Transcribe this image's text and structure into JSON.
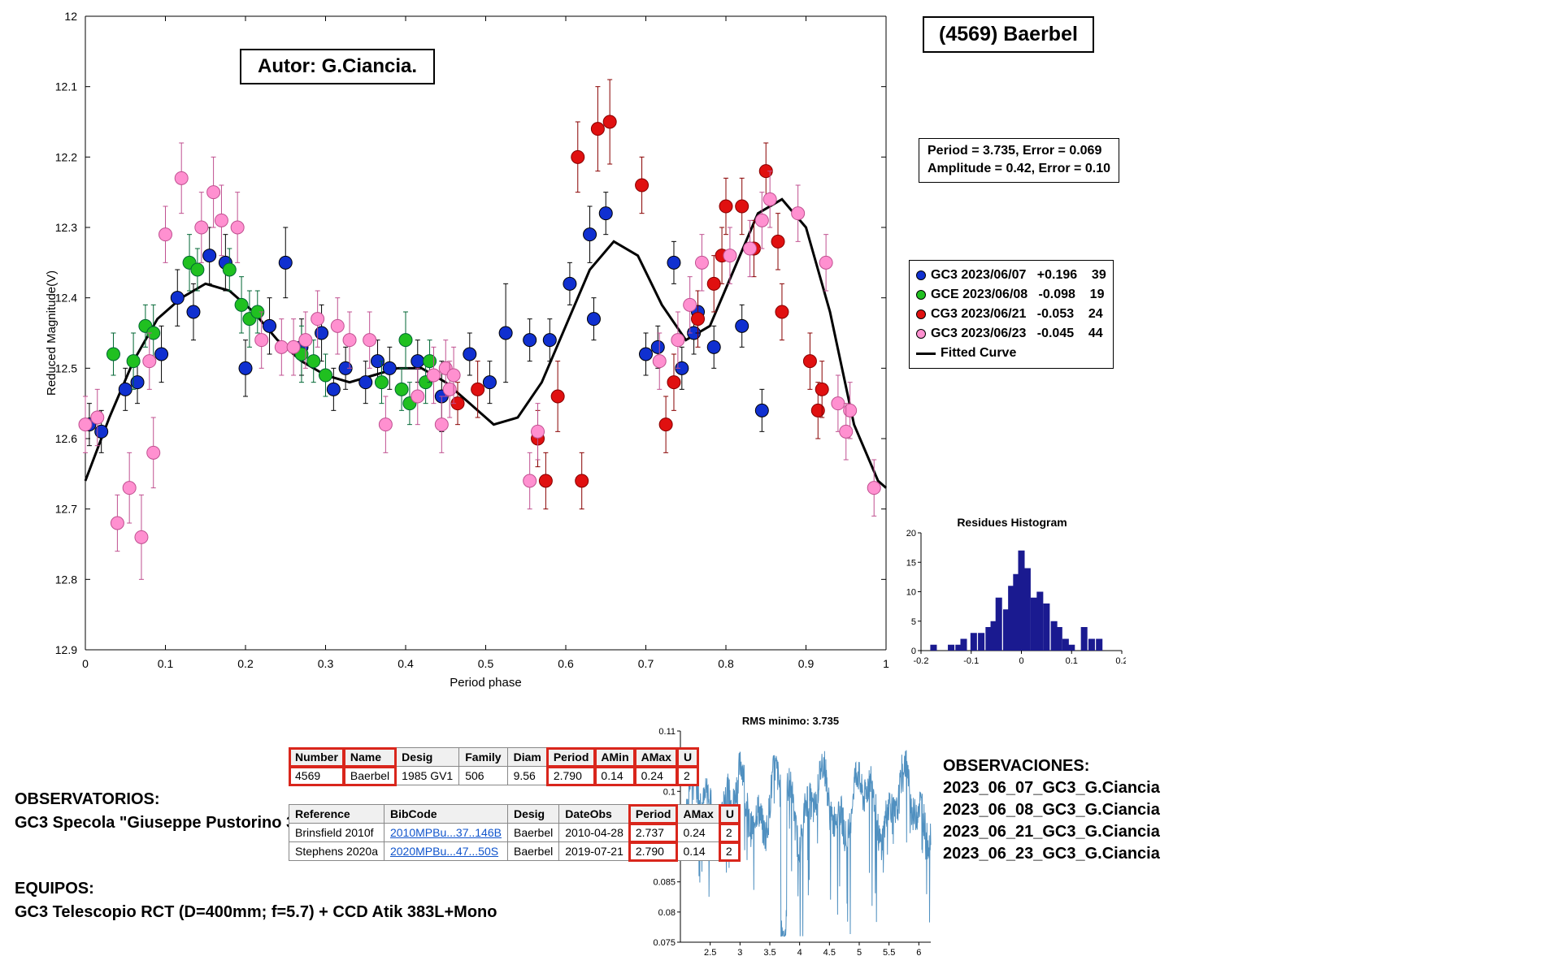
{
  "asteroid_title": "(4569) Baerbel",
  "autor_label": "Autor: G.Ciancia.",
  "stats": {
    "line1": "Period =  3.735, Error = 0.069",
    "line2": "Amplitude = 0.42, Error = 0.10"
  },
  "legend": {
    "items": [
      {
        "marker": "dot",
        "color": "#1030d0",
        "edge": "#000",
        "label": "GC3 2023/06/07   +0.196    39"
      },
      {
        "marker": "dot",
        "color": "#20c020",
        "edge": "#000",
        "label": "GCE 2023/06/08   -0.098    19"
      },
      {
        "marker": "dot",
        "color": "#e01010",
        "edge": "#000",
        "label": "CG3 2023/06/21   -0.053    24"
      },
      {
        "marker": "dot",
        "color": "#ff90d0",
        "edge": "#000",
        "label": "GC3 2023/06/23   -0.045    44"
      },
      {
        "marker": "line",
        "color": "#000000",
        "label": "Fitted Curve"
      }
    ]
  },
  "main_chart": {
    "type": "scatter_with_curve",
    "xlabel": "Period phase",
    "ylabel": "Reduced Magnitude(V)",
    "xlim": [
      0,
      1
    ],
    "ylim": [
      12.9,
      12.0
    ],
    "xticks": [
      0,
      0.1,
      0.2,
      0.3,
      0.4,
      0.5,
      0.6,
      0.7,
      0.8,
      0.9,
      1
    ],
    "yticks": [
      12,
      12.1,
      12.2,
      12.3,
      12.4,
      12.5,
      12.6,
      12.7,
      12.8,
      12.9
    ],
    "background": "#ffffff",
    "tick_font": 14,
    "label_font": 15,
    "marker_radius": 8,
    "errorbar_halfwidth": 3,
    "fitted_curve": {
      "color": "#000000",
      "width": 3.0,
      "points": [
        [
          0.0,
          12.66
        ],
        [
          0.03,
          12.57
        ],
        [
          0.06,
          12.49
        ],
        [
          0.09,
          12.43
        ],
        [
          0.12,
          12.4
        ],
        [
          0.15,
          12.38
        ],
        [
          0.18,
          12.39
        ],
        [
          0.21,
          12.42
        ],
        [
          0.24,
          12.46
        ],
        [
          0.27,
          12.49
        ],
        [
          0.3,
          12.51
        ],
        [
          0.33,
          12.52
        ],
        [
          0.36,
          12.51
        ],
        [
          0.39,
          12.5
        ],
        [
          0.42,
          12.5
        ],
        [
          0.45,
          12.52
        ],
        [
          0.48,
          12.55
        ],
        [
          0.51,
          12.58
        ],
        [
          0.54,
          12.57
        ],
        [
          0.57,
          12.52
        ],
        [
          0.6,
          12.44
        ],
        [
          0.63,
          12.36
        ],
        [
          0.66,
          12.32
        ],
        [
          0.69,
          12.34
        ],
        [
          0.72,
          12.41
        ],
        [
          0.75,
          12.46
        ],
        [
          0.78,
          12.44
        ],
        [
          0.81,
          12.36
        ],
        [
          0.84,
          12.28
        ],
        [
          0.87,
          12.26
        ],
        [
          0.9,
          12.3
        ],
        [
          0.93,
          12.42
        ],
        [
          0.96,
          12.58
        ],
        [
          0.99,
          12.66
        ],
        [
          1.0,
          12.67
        ]
      ]
    },
    "series": [
      {
        "name": "GC3 2023/06/07",
        "color": "#1030d0",
        "edge": "#000",
        "points": [
          [
            0.005,
            12.58,
            0.03
          ],
          [
            0.02,
            12.59,
            0.03
          ],
          [
            0.05,
            12.53,
            0.03
          ],
          [
            0.065,
            12.52,
            0.03
          ],
          [
            0.095,
            12.48,
            0.04
          ],
          [
            0.115,
            12.4,
            0.04
          ],
          [
            0.135,
            12.42,
            0.04
          ],
          [
            0.155,
            12.34,
            0.04
          ],
          [
            0.175,
            12.35,
            0.04
          ],
          [
            0.2,
            12.5,
            0.04
          ],
          [
            0.23,
            12.44,
            0.04
          ],
          [
            0.25,
            12.35,
            0.05
          ],
          [
            0.27,
            12.47,
            0.04
          ],
          [
            0.295,
            12.45,
            0.04
          ],
          [
            0.31,
            12.53,
            0.03
          ],
          [
            0.325,
            12.5,
            0.03
          ],
          [
            0.35,
            12.52,
            0.03
          ],
          [
            0.365,
            12.49,
            0.03
          ],
          [
            0.38,
            12.5,
            0.03
          ],
          [
            0.415,
            12.49,
            0.03
          ],
          [
            0.445,
            12.54,
            0.05
          ],
          [
            0.48,
            12.48,
            0.03
          ],
          [
            0.505,
            12.52,
            0.03
          ],
          [
            0.525,
            12.45,
            0.07
          ],
          [
            0.555,
            12.46,
            0.03
          ],
          [
            0.58,
            12.46,
            0.03
          ],
          [
            0.605,
            12.38,
            0.03
          ],
          [
            0.63,
            12.31,
            0.04
          ],
          [
            0.65,
            12.28,
            0.03
          ],
          [
            0.7,
            12.48,
            0.03
          ],
          [
            0.715,
            12.47,
            0.03
          ],
          [
            0.735,
            12.35,
            0.03
          ],
          [
            0.76,
            12.45,
            0.03
          ],
          [
            0.785,
            12.47,
            0.03
          ],
          [
            0.82,
            12.44,
            0.03
          ],
          [
            0.845,
            12.56,
            0.03
          ],
          [
            0.745,
            12.5,
            0.03
          ],
          [
            0.765,
            12.42,
            0.03
          ],
          [
            0.635,
            12.43,
            0.03
          ]
        ]
      },
      {
        "name": "GCE 2023/06/08",
        "color": "#20c020",
        "edge": "#063",
        "points": [
          [
            0.035,
            12.48,
            0.03
          ],
          [
            0.06,
            12.49,
            0.04
          ],
          [
            0.075,
            12.44,
            0.03
          ],
          [
            0.085,
            12.45,
            0.04
          ],
          [
            0.13,
            12.35,
            0.04
          ],
          [
            0.14,
            12.36,
            0.03
          ],
          [
            0.18,
            12.36,
            0.03
          ],
          [
            0.195,
            12.41,
            0.04
          ],
          [
            0.205,
            12.43,
            0.04
          ],
          [
            0.215,
            12.42,
            0.03
          ],
          [
            0.27,
            12.48,
            0.04
          ],
          [
            0.285,
            12.49,
            0.03
          ],
          [
            0.3,
            12.51,
            0.03
          ],
          [
            0.37,
            12.52,
            0.03
          ],
          [
            0.395,
            12.53,
            0.03
          ],
          [
            0.4,
            12.46,
            0.04
          ],
          [
            0.405,
            12.55,
            0.03
          ],
          [
            0.425,
            12.52,
            0.03
          ],
          [
            0.43,
            12.49,
            0.03
          ]
        ]
      },
      {
        "name": "CG3 2023/06/21",
        "color": "#e01010",
        "edge": "#800",
        "points": [
          [
            0.465,
            12.55,
            0.03
          ],
          [
            0.49,
            12.53,
            0.04
          ],
          [
            0.565,
            12.6,
            0.04
          ],
          [
            0.575,
            12.66,
            0.04
          ],
          [
            0.59,
            12.54,
            0.05
          ],
          [
            0.615,
            12.2,
            0.05
          ],
          [
            0.64,
            12.16,
            0.06
          ],
          [
            0.655,
            12.15,
            0.06
          ],
          [
            0.62,
            12.66,
            0.04
          ],
          [
            0.695,
            12.24,
            0.04
          ],
          [
            0.725,
            12.58,
            0.04
          ],
          [
            0.735,
            12.52,
            0.04
          ],
          [
            0.765,
            12.43,
            0.04
          ],
          [
            0.785,
            12.38,
            0.04
          ],
          [
            0.795,
            12.34,
            0.04
          ],
          [
            0.8,
            12.27,
            0.04
          ],
          [
            0.82,
            12.27,
            0.04
          ],
          [
            0.835,
            12.33,
            0.04
          ],
          [
            0.85,
            12.22,
            0.04
          ],
          [
            0.865,
            12.32,
            0.04
          ],
          [
            0.87,
            12.42,
            0.04
          ],
          [
            0.905,
            12.49,
            0.04
          ],
          [
            0.915,
            12.56,
            0.04
          ],
          [
            0.92,
            12.53,
            0.04
          ]
        ]
      },
      {
        "name": "GC3 2023/06/23",
        "color": "#ff90d0",
        "edge": "#c05090",
        "points": [
          [
            0.0,
            12.58,
            0.04
          ],
          [
            0.015,
            12.57,
            0.04
          ],
          [
            0.04,
            12.72,
            0.04
          ],
          [
            0.055,
            12.67,
            0.05
          ],
          [
            0.07,
            12.74,
            0.06
          ],
          [
            0.08,
            12.49,
            0.04
          ],
          [
            0.085,
            12.62,
            0.05
          ],
          [
            0.1,
            12.31,
            0.04
          ],
          [
            0.12,
            12.23,
            0.05
          ],
          [
            0.145,
            12.3,
            0.05
          ],
          [
            0.16,
            12.25,
            0.05
          ],
          [
            0.17,
            12.29,
            0.05
          ],
          [
            0.19,
            12.3,
            0.05
          ],
          [
            0.22,
            12.46,
            0.04
          ],
          [
            0.245,
            12.47,
            0.04
          ],
          [
            0.26,
            12.47,
            0.04
          ],
          [
            0.275,
            12.46,
            0.04
          ],
          [
            0.29,
            12.43,
            0.04
          ],
          [
            0.315,
            12.44,
            0.04
          ],
          [
            0.33,
            12.46,
            0.04
          ],
          [
            0.355,
            12.46,
            0.04
          ],
          [
            0.375,
            12.58,
            0.04
          ],
          [
            0.415,
            12.54,
            0.04
          ],
          [
            0.435,
            12.51,
            0.04
          ],
          [
            0.45,
            12.5,
            0.04
          ],
          [
            0.445,
            12.58,
            0.04
          ],
          [
            0.455,
            12.53,
            0.04
          ],
          [
            0.46,
            12.51,
            0.04
          ],
          [
            0.555,
            12.66,
            0.04
          ],
          [
            0.565,
            12.59,
            0.04
          ],
          [
            0.717,
            12.49,
            0.04
          ],
          [
            0.74,
            12.46,
            0.04
          ],
          [
            0.755,
            12.41,
            0.04
          ],
          [
            0.77,
            12.35,
            0.04
          ],
          [
            0.805,
            12.34,
            0.04
          ],
          [
            0.83,
            12.33,
            0.04
          ],
          [
            0.845,
            12.29,
            0.04
          ],
          [
            0.855,
            12.26,
            0.04
          ],
          [
            0.89,
            12.28,
            0.04
          ],
          [
            0.925,
            12.35,
            0.04
          ],
          [
            0.94,
            12.55,
            0.04
          ],
          [
            0.955,
            12.56,
            0.04
          ],
          [
            0.95,
            12.59,
            0.04
          ],
          [
            0.985,
            12.67,
            0.04
          ]
        ]
      }
    ]
  },
  "histogram": {
    "title": "Residues Histogram",
    "xlim": [
      -0.2,
      0.2
    ],
    "ylim": [
      0,
      20
    ],
    "xticks": [
      -0.2,
      -0.1,
      0,
      0.1,
      0.2
    ],
    "yticks": [
      0,
      5,
      10,
      15,
      20
    ],
    "bar_color": "#1a1a90",
    "bar_width": 0.013,
    "bins": [
      [
        -0.175,
        1
      ],
      [
        -0.14,
        1
      ],
      [
        -0.125,
        1
      ],
      [
        -0.115,
        2
      ],
      [
        -0.095,
        3
      ],
      [
        -0.08,
        3
      ],
      [
        -0.065,
        4
      ],
      [
        -0.055,
        5
      ],
      [
        -0.045,
        9
      ],
      [
        -0.03,
        7
      ],
      [
        -0.02,
        11
      ],
      [
        -0.01,
        13
      ],
      [
        0.0,
        17
      ],
      [
        0.012,
        14
      ],
      [
        0.025,
        9
      ],
      [
        0.037,
        10
      ],
      [
        0.05,
        8
      ],
      [
        0.065,
        5
      ],
      [
        0.075,
        4
      ],
      [
        0.088,
        2
      ],
      [
        0.1,
        1
      ],
      [
        0.125,
        4
      ],
      [
        0.14,
        2
      ],
      [
        0.155,
        2
      ]
    ]
  },
  "rms": {
    "title": "RMS minimo: 3.735",
    "xlim": [
      2,
      6.2
    ],
    "ylim": [
      0.075,
      0.11
    ],
    "xticks": [
      2.5,
      3,
      3.5,
      4,
      4.5,
      5,
      5.5,
      6
    ],
    "yticks": [
      0.075,
      0.08,
      0.085,
      0.09,
      0.095,
      0.1,
      0.105,
      0.11
    ],
    "line_color": "#5090c0",
    "line_width": 1
  },
  "observatorios_header": "OBSERVATORIOS:",
  "observatorios_line": "GC3 Specola \"Giuseppe Pustorino 3\"",
  "equipos_header": "EQUIPOS:",
  "equipos_line": "GC3 Telescopio RCT (D=400mm; f=5.7) + CCD Atik 383L+Mono",
  "table1": {
    "headers": [
      "Number",
      "Name",
      "Desig",
      "Family",
      "Diam",
      "Period",
      "AMin",
      "AMax",
      "U"
    ],
    "highlight_headers": [
      0,
      1,
      5,
      6,
      7,
      8
    ],
    "row": [
      "4569",
      "Baerbel",
      "1985 GV1",
      "506",
      "9.56",
      "2.790",
      "0.14",
      "0.24",
      "2"
    ],
    "highlight_cells": [
      0,
      1,
      5,
      6,
      7,
      8
    ]
  },
  "table2": {
    "headers": [
      "Reference",
      "BibCode",
      "Desig",
      "DateObs",
      "Period",
      "AMax",
      "U"
    ],
    "highlight_headers": [
      4,
      6
    ],
    "rows": [
      [
        "Brinsfield 2010f",
        "2010MPBu...37..146B",
        "Baerbel",
        "2010-04-28",
        "2.737",
        "0.24",
        "2"
      ],
      [
        "Stephens 2020a",
        "2020MPBu...47...50S",
        "Baerbel",
        "2019-07-21",
        "2.790",
        "0.14",
        "2"
      ]
    ],
    "highlight_cells": [
      4,
      6
    ],
    "link_col": 1
  },
  "observaciones": {
    "header": "OBSERVACIONES:",
    "lines": [
      "2023_06_07_GC3_G.Ciancia",
      "2023_06_08_GC3_G.Ciancia",
      "2023_06_21_GC3_G.Ciancia",
      "2023_06_23_GC3_G.Ciancia"
    ]
  }
}
